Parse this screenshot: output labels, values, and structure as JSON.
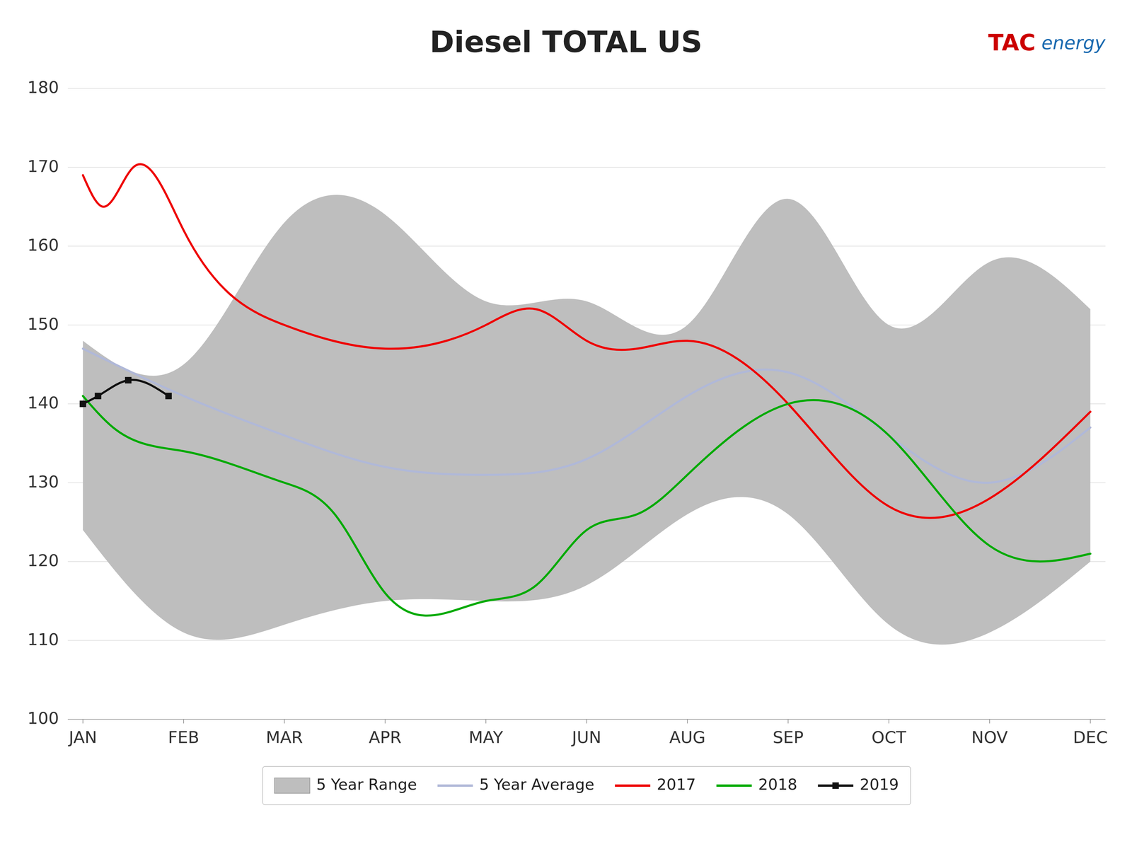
{
  "chart_data": {
    "type": "line",
    "title": "Diesel  TOTAL US",
    "annotations": [
      {
        "text": "TAC",
        "color": "#cc0000"
      },
      {
        "text": "energy",
        "color": "#1a6ab0"
      }
    ],
    "xlim": [
      -0.15,
      10.15
    ],
    "xticks": [
      {
        "value": 0,
        "label": "JAN"
      },
      {
        "value": 1,
        "label": "FEB"
      },
      {
        "value": 2,
        "label": "MAR"
      },
      {
        "value": 3,
        "label": "APR"
      },
      {
        "value": 4,
        "label": "MAY"
      },
      {
        "value": 5,
        "label": "JUN"
      },
      {
        "value": 6,
        "label": "AUG"
      },
      {
        "value": 7,
        "label": "SEP"
      },
      {
        "value": 8,
        "label": "OCT"
      },
      {
        "value": 9,
        "label": "NOV"
      },
      {
        "value": 10,
        "label": "DEC"
      }
    ],
    "ylim": [
      100,
      180
    ],
    "yticks": [
      100,
      110,
      120,
      130,
      140,
      150,
      160,
      170,
      180
    ],
    "grid": true,
    "legend": "bottom",
    "series": [
      {
        "name": "5 Year Range",
        "type": "band",
        "color": "#bebebe",
        "x": [
          0,
          1,
          2,
          3,
          4,
          5,
          6,
          7,
          8,
          9,
          10
        ],
        "low": [
          124,
          111,
          112,
          115,
          115,
          117,
          126,
          126,
          112,
          111,
          120
        ],
        "high": [
          148,
          145,
          163,
          164,
          153,
          153,
          150,
          166,
          150,
          158,
          152
        ]
      },
      {
        "name": "5 Year Average",
        "type": "line",
        "color": "#b0b8d8",
        "x": [
          0,
          1,
          2,
          3,
          4,
          5,
          6,
          7,
          8,
          9,
          10
        ],
        "values": [
          147,
          141,
          136,
          132,
          131,
          133,
          141,
          144,
          136,
          130,
          137
        ]
      },
      {
        "name": "2017",
        "type": "line",
        "color": "#ee0000",
        "x": [
          0,
          0.2,
          0.5,
          1.0,
          2.0,
          3.0,
          4.0,
          4.5,
          5.0,
          5.5,
          6.0,
          7.0,
          8.0,
          9.0,
          10.0
        ],
        "values": [
          169,
          165,
          170,
          162,
          150,
          147,
          150,
          152,
          148,
          147,
          148,
          140,
          127,
          128,
          139
        ]
      },
      {
        "name": "2018",
        "type": "line",
        "color": "#00aa00",
        "x": [
          0,
          0.3,
          1.0,
          2.0,
          2.5,
          3.0,
          4.0,
          4.5,
          5.0,
          5.5,
          6.0,
          7.0,
          8.0,
          9.0,
          10.0
        ],
        "values": [
          141,
          137,
          134,
          130,
          126,
          116,
          115,
          117,
          124,
          126,
          131,
          140,
          136,
          122,
          121
        ]
      },
      {
        "name": "2019",
        "type": "line",
        "color": "#111111",
        "marker": "square",
        "x": [
          0,
          0.15,
          0.45,
          0.85
        ],
        "values": [
          140,
          141,
          143,
          141
        ]
      }
    ]
  }
}
